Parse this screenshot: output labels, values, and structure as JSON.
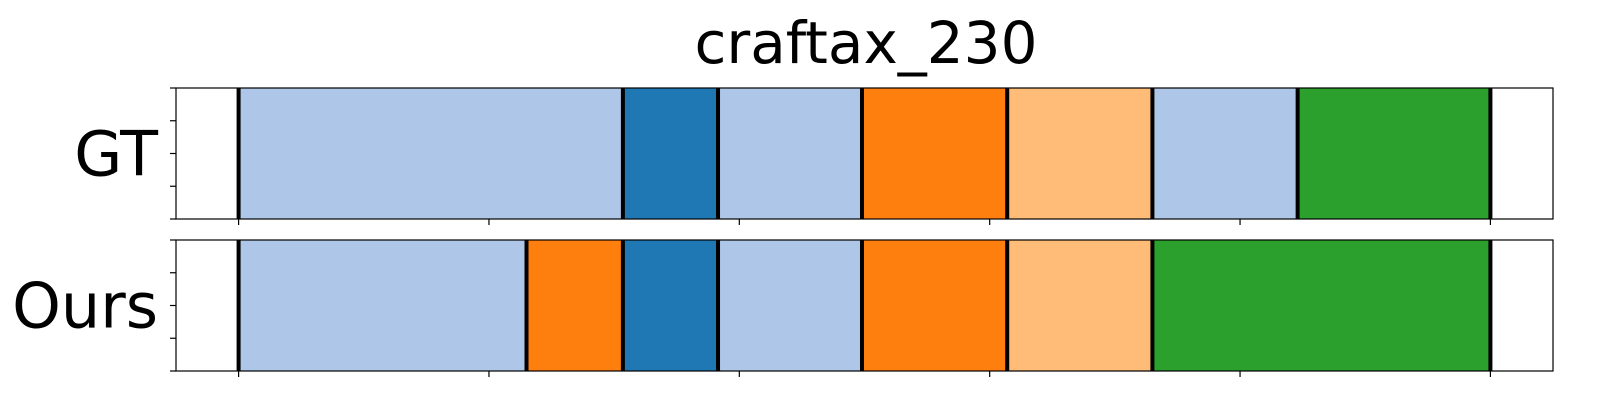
{
  "chart_data": {
    "type": "timeline",
    "title": "craftax_230",
    "xlim": [
      -0.5,
      10.5
    ],
    "rows": [
      {
        "name": "GT",
        "segments": [
          {
            "start": 0.0,
            "end": 3.07,
            "color": "#aec7e8"
          },
          {
            "start": 3.07,
            "end": 3.83,
            "color": "#1f77b4"
          },
          {
            "start": 3.83,
            "end": 4.98,
            "color": "#aec7e8"
          },
          {
            "start": 4.98,
            "end": 6.14,
            "color": "#ff7f0e"
          },
          {
            "start": 6.14,
            "end": 7.3,
            "color": "#ffbb78"
          },
          {
            "start": 7.3,
            "end": 8.46,
            "color": "#aec7e8"
          },
          {
            "start": 8.46,
            "end": 10.0,
            "color": "#2ca02c"
          }
        ]
      },
      {
        "name": "Ours",
        "segments": [
          {
            "start": 0.0,
            "end": 2.3,
            "color": "#aec7e8"
          },
          {
            "start": 2.3,
            "end": 3.07,
            "color": "#ff7f0e"
          },
          {
            "start": 3.07,
            "end": 3.83,
            "color": "#1f77b4"
          },
          {
            "start": 3.83,
            "end": 4.98,
            "color": "#aec7e8"
          },
          {
            "start": 4.98,
            "end": 6.14,
            "color": "#ff7f0e"
          },
          {
            "start": 6.14,
            "end": 7.3,
            "color": "#ffbb78"
          },
          {
            "start": 7.3,
            "end": 10.0,
            "color": "#2ca02c"
          }
        ]
      }
    ],
    "x_ticks": [
      0,
      2,
      4,
      6,
      8,
      10
    ],
    "y_ticks_per_panel": 5,
    "tick_labels_visible": false,
    "grid": false,
    "legend": "none"
  }
}
